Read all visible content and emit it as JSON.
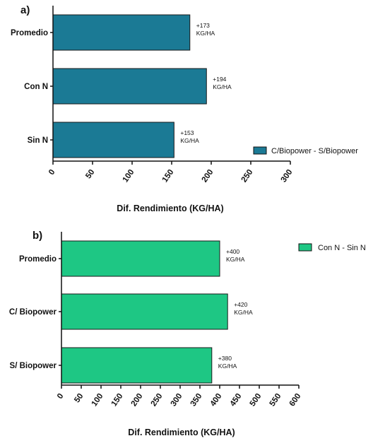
{
  "chart_data": [
    {
      "panel_label": "a)",
      "type": "bar",
      "orientation": "horizontal",
      "categories": [
        "Promedio",
        "Con N",
        "Sin N"
      ],
      "series": [
        {
          "name": "C/Biopower - S/Biopower",
          "color": "#1b7a95",
          "values": [
            173,
            194,
            153
          ]
        }
      ],
      "data_labels": [
        [
          "+173",
          "KG/HA"
        ],
        [
          "+194",
          "KG/HA"
        ],
        [
          "+153",
          "KG/HA"
        ]
      ],
      "xlabel": "Dif. Rendimiento (KG/HA)",
      "xlim": [
        0,
        300
      ],
      "xticks": [
        0,
        50,
        100,
        150,
        200,
        250,
        300
      ],
      "grid": false,
      "legend_position": "bottom-right"
    },
    {
      "panel_label": "b)",
      "type": "bar",
      "orientation": "horizontal",
      "categories": [
        "Promedio",
        "C/ Biopower",
        "S/ Biopower"
      ],
      "series": [
        {
          "name": "Con N - Sin N",
          "color": "#1ec784",
          "values": [
            400,
            420,
            380
          ]
        }
      ],
      "data_labels": [
        [
          "+400",
          "KG/HA"
        ],
        [
          "+420",
          "KG/HA"
        ],
        [
          "+380",
          "KG/HA"
        ]
      ],
      "xlabel": "Dif. Rendimiento (KG/HA)",
      "xlim": [
        0,
        600
      ],
      "xticks": [
        0,
        50,
        100,
        150,
        200,
        250,
        300,
        350,
        400,
        450,
        500,
        550,
        600
      ],
      "grid": false,
      "legend_position": "top-right"
    }
  ]
}
